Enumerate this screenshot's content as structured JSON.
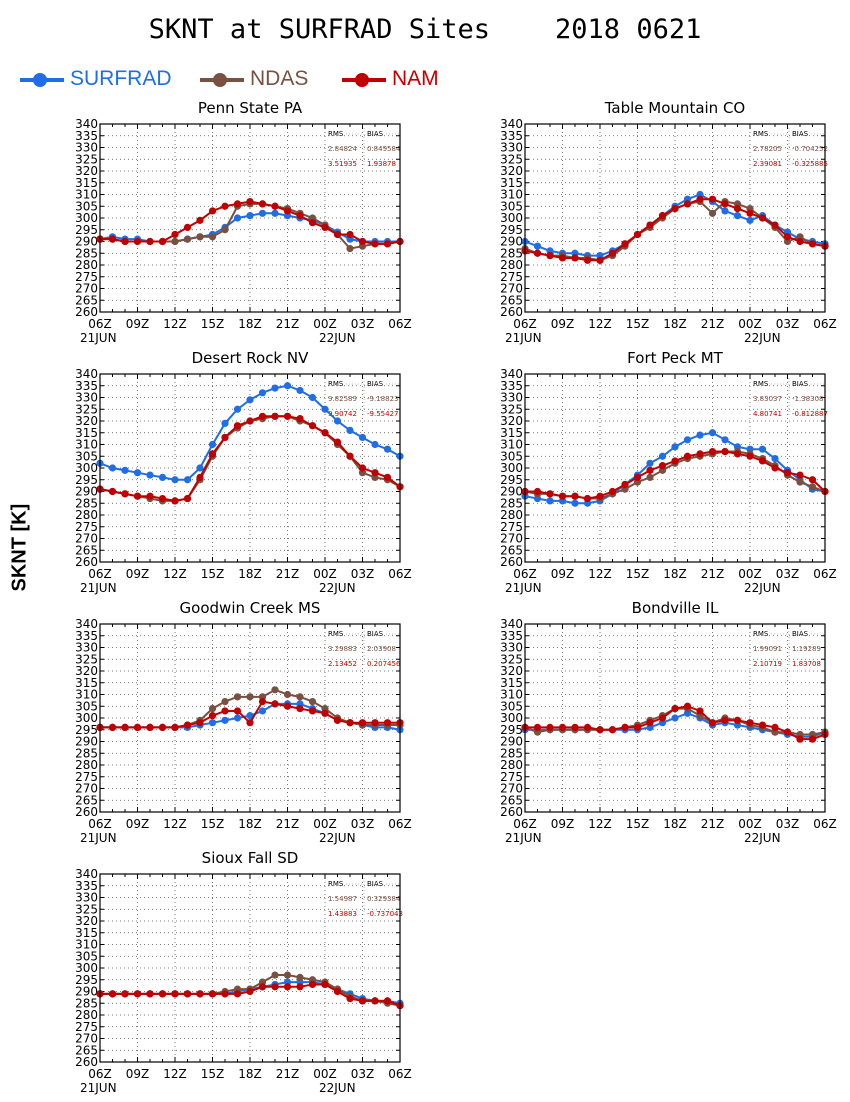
{
  "page": {
    "title": "SKNT at SURFRAD Sites    2018 0621",
    "ylabel": "SKNT [K]"
  },
  "legend": [
    {
      "name": "SURFRAD",
      "color": "#1f6ee6"
    },
    {
      "name": "NDAS",
      "color": "#7a5040"
    },
    {
      "name": "NAM",
      "color": "#c00000"
    }
  ],
  "stats_headers": {
    "rms": "RMS",
    "bias": "BIAS"
  },
  "chart_data": [
    {
      "type": "line",
      "title": "Penn State PA",
      "x": [
        "06Z",
        "07Z",
        "08Z",
        "09Z",
        "10Z",
        "11Z",
        "12Z",
        "13Z",
        "14Z",
        "15Z",
        "16Z",
        "17Z",
        "18Z",
        "19Z",
        "20Z",
        "21Z",
        "22Z",
        "23Z",
        "00Z",
        "01Z",
        "02Z",
        "03Z",
        "04Z",
        "05Z",
        "06Z"
      ],
      "x_ticks": [
        "06Z",
        "09Z",
        "12Z",
        "15Z",
        "18Z",
        "21Z",
        "00Z",
        "03Z",
        "06Z"
      ],
      "date_labels": [
        "21JUN",
        "22JUN"
      ],
      "ylim": [
        260,
        340
      ],
      "y_ticks_step": 5,
      "grid": true,
      "stats": [
        {
          "rms": "2.84824",
          "bias": "0.849584"
        },
        {
          "rms": "3.51935",
          "bias": "1.93878"
        }
      ],
      "series": [
        {
          "name": "SURFRAD",
          "values": [
            291,
            292,
            291,
            291,
            290,
            290,
            290,
            291,
            292,
            293,
            296,
            300,
            301,
            302,
            302,
            301,
            300,
            299,
            297,
            294,
            291,
            290,
            290,
            290,
            290
          ]
        },
        {
          "name": "NDAS",
          "values": [
            291,
            291,
            290,
            290,
            290,
            290,
            290,
            291,
            292,
            292,
            295,
            305,
            306,
            306,
            305,
            304,
            302,
            300,
            297,
            293,
            287,
            288,
            289,
            289,
            290
          ]
        },
        {
          "name": "NAM",
          "values": [
            291,
            291,
            290,
            290,
            290,
            290,
            293,
            296,
            299,
            303,
            305,
            306,
            307,
            306,
            305,
            303,
            301,
            298,
            296,
            293,
            293,
            290,
            289,
            289,
            290
          ]
        }
      ]
    },
    {
      "type": "line",
      "title": "Table Mountain CO",
      "x": [
        "06Z",
        "07Z",
        "08Z",
        "09Z",
        "10Z",
        "11Z",
        "12Z",
        "13Z",
        "14Z",
        "15Z",
        "16Z",
        "17Z",
        "18Z",
        "19Z",
        "20Z",
        "21Z",
        "22Z",
        "23Z",
        "00Z",
        "01Z",
        "02Z",
        "03Z",
        "04Z",
        "05Z",
        "06Z"
      ],
      "x_ticks": [
        "06Z",
        "09Z",
        "12Z",
        "15Z",
        "18Z",
        "21Z",
        "00Z",
        "03Z",
        "06Z"
      ],
      "date_labels": [
        "21JUN",
        "22JUN"
      ],
      "ylim": [
        260,
        340
      ],
      "y_ticks_step": 5,
      "grid": true,
      "stats": [
        {
          "rms": "2.78205",
          "bias": "-0.704252"
        },
        {
          "rms": "2.39081",
          "bias": "-0.325885"
        }
      ],
      "series": [
        {
          "name": "SURFRAD",
          "values": [
            290,
            288,
            286,
            285,
            285,
            284,
            284,
            286,
            289,
            293,
            297,
            301,
            305,
            308,
            310,
            307,
            303,
            301,
            299,
            301,
            297,
            294,
            291,
            290,
            289
          ]
        },
        {
          "name": "NDAS",
          "values": [
            287,
            285,
            284,
            284,
            283,
            283,
            282,
            284,
            288,
            293,
            296,
            300,
            304,
            306,
            307,
            302,
            307,
            306,
            304,
            300,
            296,
            290,
            292,
            289,
            288
          ]
        },
        {
          "name": "NAM",
          "values": [
            286,
            285,
            284,
            283,
            283,
            282,
            282,
            285,
            289,
            293,
            297,
            301,
            304,
            306,
            308,
            308,
            306,
            304,
            302,
            300,
            297,
            292,
            290,
            289,
            288
          ]
        }
      ]
    },
    {
      "type": "line",
      "title": "Desert Rock NV",
      "x": [
        "06Z",
        "07Z",
        "08Z",
        "09Z",
        "10Z",
        "11Z",
        "12Z",
        "13Z",
        "14Z",
        "15Z",
        "16Z",
        "17Z",
        "18Z",
        "19Z",
        "20Z",
        "21Z",
        "22Z",
        "23Z",
        "00Z",
        "01Z",
        "02Z",
        "03Z",
        "04Z",
        "05Z",
        "06Z"
      ],
      "x_ticks": [
        "06Z",
        "09Z",
        "12Z",
        "15Z",
        "18Z",
        "21Z",
        "00Z",
        "03Z",
        "06Z"
      ],
      "date_labels": [
        "21JUN",
        "22JUN"
      ],
      "ylim": [
        260,
        340
      ],
      "y_ticks_step": 5,
      "grid": true,
      "stats": [
        {
          "rms": "9.82589",
          "bias": "-9.18823"
        },
        {
          "rms": "9.90742",
          "bias": "-9.55427"
        }
      ],
      "series": [
        {
          "name": "SURFRAD",
          "values": [
            302,
            300,
            299,
            298,
            297,
            296,
            295,
            295,
            300,
            310,
            319,
            325,
            329,
            332,
            334,
            335,
            333,
            330,
            325,
            320,
            316,
            313,
            310,
            308,
            305
          ]
        },
        {
          "name": "NDAS",
          "values": [
            291,
            290,
            289,
            288,
            287,
            286,
            286,
            287,
            295,
            305,
            313,
            317,
            320,
            321,
            322,
            322,
            320,
            318,
            315,
            310,
            305,
            298,
            296,
            295,
            292
          ]
        },
        {
          "name": "NAM",
          "values": [
            291,
            290,
            289,
            288,
            288,
            287,
            286,
            287,
            296,
            306,
            313,
            318,
            320,
            322,
            322,
            322,
            321,
            318,
            315,
            311,
            305,
            300,
            298,
            296,
            292
          ]
        }
      ]
    },
    {
      "type": "line",
      "title": "Fort Peck MT",
      "x": [
        "06Z",
        "07Z",
        "08Z",
        "09Z",
        "10Z",
        "11Z",
        "12Z",
        "13Z",
        "14Z",
        "15Z",
        "16Z",
        "17Z",
        "18Z",
        "19Z",
        "20Z",
        "21Z",
        "22Z",
        "23Z",
        "00Z",
        "01Z",
        "02Z",
        "03Z",
        "04Z",
        "05Z",
        "06Z"
      ],
      "x_ticks": [
        "06Z",
        "09Z",
        "12Z",
        "15Z",
        "18Z",
        "21Z",
        "00Z",
        "03Z",
        "06Z"
      ],
      "date_labels": [
        "21JUN",
        "22JUN"
      ],
      "ylim": [
        260,
        340
      ],
      "y_ticks_step": 5,
      "grid": true,
      "stats": [
        {
          "rms": "3.83037",
          "bias": "-1.38308"
        },
        {
          "rms": "4.80741",
          "bias": "-0.812887"
        }
      ],
      "series": [
        {
          "name": "SURFRAD",
          "values": [
            288,
            287,
            286,
            286,
            285,
            285,
            286,
            289,
            293,
            297,
            302,
            305,
            309,
            312,
            314,
            315,
            312,
            309,
            308,
            308,
            304,
            299,
            295,
            291,
            290
          ]
        },
        {
          "name": "NDAS",
          "values": [
            290,
            289,
            289,
            288,
            288,
            287,
            287,
            289,
            291,
            294,
            296,
            299,
            302,
            304,
            305,
            306,
            307,
            307,
            306,
            304,
            301,
            297,
            294,
            292,
            290
          ]
        },
        {
          "name": "NAM",
          "values": [
            290,
            290,
            289,
            288,
            288,
            287,
            288,
            290,
            293,
            296,
            299,
            301,
            303,
            305,
            306,
            307,
            307,
            306,
            305,
            303,
            300,
            298,
            297,
            295,
            290
          ]
        }
      ]
    },
    {
      "type": "line",
      "title": "Goodwin Creek MS",
      "x": [
        "06Z",
        "07Z",
        "08Z",
        "09Z",
        "10Z",
        "11Z",
        "12Z",
        "13Z",
        "14Z",
        "15Z",
        "16Z",
        "17Z",
        "18Z",
        "19Z",
        "20Z",
        "21Z",
        "22Z",
        "23Z",
        "00Z",
        "01Z",
        "02Z",
        "03Z",
        "04Z",
        "05Z",
        "06Z"
      ],
      "x_ticks": [
        "06Z",
        "09Z",
        "12Z",
        "15Z",
        "18Z",
        "21Z",
        "00Z",
        "03Z",
        "06Z"
      ],
      "date_labels": [
        "21JUN",
        "22JUN"
      ],
      "ylim": [
        260,
        340
      ],
      "y_ticks_step": 5,
      "grid": true,
      "stats": [
        {
          "rms": "3.29883",
          "bias": "2.03908"
        },
        {
          "rms": "2.13452",
          "bias": "0.207456"
        }
      ],
      "series": [
        {
          "name": "SURFRAD",
          "values": [
            296,
            296,
            296,
            296,
            296,
            296,
            296,
            296,
            297,
            298,
            299,
            300,
            301,
            303,
            306,
            306,
            306,
            304,
            302,
            299,
            298,
            297,
            296,
            296,
            295
          ]
        },
        {
          "name": "NDAS",
          "values": [
            296,
            296,
            296,
            296,
            296,
            296,
            296,
            297,
            299,
            304,
            307,
            309,
            309,
            309,
            312,
            310,
            309,
            307,
            304,
            300,
            298,
            297,
            297,
            297,
            297
          ]
        },
        {
          "name": "NAM",
          "values": [
            296,
            296,
            296,
            296,
            296,
            296,
            296,
            297,
            298,
            301,
            303,
            303,
            298,
            307,
            306,
            305,
            304,
            303,
            302,
            299,
            298,
            298,
            298,
            298,
            298
          ]
        }
      ]
    },
    {
      "type": "line",
      "title": "Bondville IL",
      "x": [
        "06Z",
        "07Z",
        "08Z",
        "09Z",
        "10Z",
        "11Z",
        "12Z",
        "13Z",
        "14Z",
        "15Z",
        "16Z",
        "17Z",
        "18Z",
        "19Z",
        "20Z",
        "21Z",
        "22Z",
        "23Z",
        "00Z",
        "01Z",
        "02Z",
        "03Z",
        "04Z",
        "05Z",
        "06Z"
      ],
      "x_ticks": [
        "06Z",
        "09Z",
        "12Z",
        "15Z",
        "18Z",
        "21Z",
        "00Z",
        "03Z",
        "06Z"
      ],
      "date_labels": [
        "21JUN",
        "22JUN"
      ],
      "ylim": [
        260,
        340
      ],
      "y_ticks_step": 5,
      "grid": true,
      "stats": [
        {
          "rms": "1.99091",
          "bias": "1.19289"
        },
        {
          "rms": "2.10719",
          "bias": "1.83708"
        }
      ],
      "series": [
        {
          "name": "SURFRAD",
          "values": [
            295,
            295,
            295,
            295,
            295,
            295,
            295,
            295,
            295,
            295,
            296,
            298,
            300,
            302,
            300,
            297,
            298,
            297,
            296,
            295,
            294,
            293,
            292,
            292,
            294
          ]
        },
        {
          "name": "NDAS",
          "values": [
            296,
            294,
            295,
            295,
            295,
            295,
            295,
            295,
            296,
            297,
            299,
            301,
            304,
            304,
            301,
            298,
            300,
            299,
            297,
            296,
            294,
            294,
            293,
            293,
            294
          ]
        },
        {
          "name": "NAM",
          "values": [
            296,
            296,
            296,
            296,
            296,
            296,
            295,
            295,
            296,
            296,
            298,
            300,
            304,
            305,
            303,
            298,
            299,
            299,
            298,
            297,
            296,
            294,
            291,
            291,
            293
          ]
        }
      ]
    },
    {
      "type": "line",
      "title": "Sioux Fall SD",
      "x": [
        "06Z",
        "07Z",
        "08Z",
        "09Z",
        "10Z",
        "11Z",
        "12Z",
        "13Z",
        "14Z",
        "15Z",
        "16Z",
        "17Z",
        "18Z",
        "19Z",
        "20Z",
        "21Z",
        "22Z",
        "23Z",
        "00Z",
        "01Z",
        "02Z",
        "03Z",
        "04Z",
        "05Z",
        "06Z"
      ],
      "x_ticks": [
        "06Z",
        "09Z",
        "12Z",
        "15Z",
        "18Z",
        "21Z",
        "00Z",
        "03Z",
        "06Z"
      ],
      "date_labels": [
        "21JUN",
        "22JUN"
      ],
      "ylim": [
        260,
        340
      ],
      "y_ticks_step": 5,
      "grid": true,
      "stats": [
        {
          "rms": "1.54987",
          "bias": "0.329384"
        },
        {
          "rms": "1.43883",
          "bias": "-0.737043"
        }
      ],
      "series": [
        {
          "name": "SURFRAD",
          "values": [
            289,
            289,
            289,
            289,
            289,
            289,
            289,
            289,
            289,
            289,
            289,
            290,
            291,
            292,
            293,
            294,
            294,
            294,
            293,
            291,
            289,
            287,
            286,
            286,
            285
          ]
        },
        {
          "name": "NDAS",
          "values": [
            289,
            289,
            289,
            289,
            289,
            289,
            289,
            289,
            289,
            289,
            290,
            291,
            291,
            294,
            297,
            297,
            296,
            295,
            294,
            291,
            288,
            286,
            286,
            285,
            284
          ]
        },
        {
          "name": "NAM",
          "values": [
            289,
            289,
            289,
            289,
            289,
            289,
            289,
            289,
            289,
            289,
            289,
            289,
            290,
            292,
            292,
            292,
            292,
            293,
            293,
            290,
            287,
            286,
            286,
            286,
            284
          ]
        }
      ]
    }
  ]
}
